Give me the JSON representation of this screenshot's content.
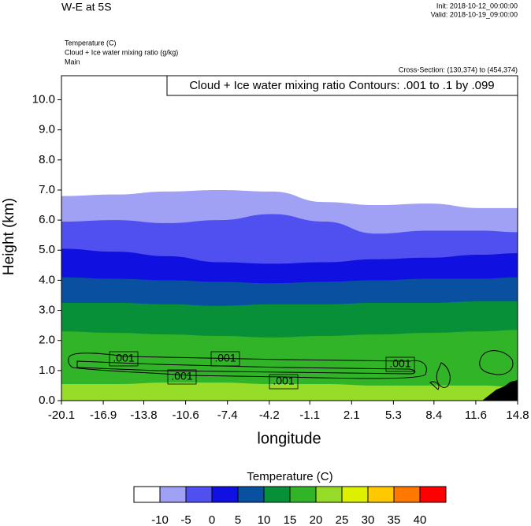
{
  "chart_data": {
    "type": "contour",
    "title": "W-E at 5S",
    "init": "Init: 2018-10-12_00:00:00",
    "valid": "Valid: 2018-10-19_09:00:00",
    "fields": [
      "Temperature   (C)",
      "Cloud + Ice water mixing ratio   (g/kg)",
      "Main"
    ],
    "cross_section": "Cross-Section: (130,374) to (454,374)",
    "contour_note": "Cloud + Ice water mixing ratio Contours: .001 to .1 by .099",
    "xlabel": "longitude",
    "ylabel": "Height (km)",
    "xlim": [
      -20.1,
      14.8
    ],
    "ylim": [
      0,
      10.8
    ],
    "xticks": [
      -20.1,
      -16.9,
      -13.8,
      -10.6,
      -7.4,
      -4.2,
      -1.1,
      2.1,
      5.3,
      8.4,
      11.6,
      14.8
    ],
    "yticks": [
      {
        "value": 0,
        "label": "0.0"
      },
      {
        "value": 1,
        "label": "1.0"
      },
      {
        "value": 2,
        "label": "2.0"
      },
      {
        "value": 3,
        "label": "3.0"
      },
      {
        "value": 4,
        "label": "4.0"
      },
      {
        "value": 5,
        "label": "5.0"
      },
      {
        "value": 6,
        "label": "6.0"
      },
      {
        "value": 7,
        "label": "7.0"
      },
      {
        "value": 8,
        "label": "8.0"
      },
      {
        "value": 9,
        "label": "9.0"
      },
      {
        "value": 10,
        "label": "10.0"
      }
    ],
    "colorbar_title": "Temperature  (C)",
    "levels": [
      -10,
      -5,
      0,
      5,
      10,
      15,
      20,
      25,
      30,
      35,
      40
    ],
    "colors": [
      "#ffffff",
      "#a0a0f5",
      "#5050f0",
      "#1010e0",
      "#0a50a0",
      "#089038",
      "#32b428",
      "#96dc28",
      "#dcf000",
      "#ffc800",
      "#ff7800",
      "#ff0000"
    ],
    "x": [
      -20.1,
      -16,
      -12,
      -8,
      -4,
      0,
      4,
      8,
      12,
      14.8
    ],
    "isotherms": [
      {
        "value": -10,
        "height": [
          6.8,
          6.85,
          6.95,
          7.0,
          6.95,
          6.6,
          6.5,
          6.55,
          6.4,
          6.4
        ]
      },
      {
        "value": -5,
        "height": [
          5.95,
          6.0,
          5.9,
          6.0,
          6.2,
          5.95,
          5.55,
          5.65,
          5.65,
          5.6
        ]
      },
      {
        "value": 0,
        "height": [
          5.05,
          4.95,
          4.8,
          4.6,
          4.55,
          4.6,
          4.7,
          4.75,
          4.85,
          4.9
        ]
      },
      {
        "value": 5,
        "height": [
          4.1,
          4.05,
          4.0,
          3.95,
          3.9,
          3.95,
          4.0,
          4.05,
          4.05,
          4.1
        ]
      },
      {
        "value": 10,
        "height": [
          3.25,
          3.25,
          3.2,
          3.15,
          3.2,
          3.2,
          3.25,
          3.25,
          3.3,
          3.3
        ]
      },
      {
        "value": 15,
        "height": [
          2.3,
          2.25,
          2.2,
          2.15,
          2.1,
          2.15,
          2.2,
          2.25,
          2.3,
          2.35
        ]
      },
      {
        "value": 20,
        "height": [
          0.55,
          0.55,
          0.6,
          0.6,
          0.55,
          0.55,
          0.5,
          0.5,
          0.5,
          0.45
        ]
      }
    ],
    "contour_labels": [
      ".001",
      ".001",
      ".001",
      ".001",
      ".001"
    ]
  }
}
